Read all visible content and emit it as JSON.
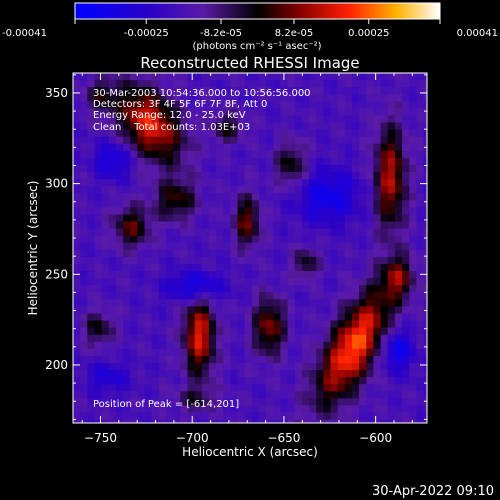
{
  "chart_data": {
    "type": "heatmap",
    "title": "Reconstructed RHESSI Image",
    "xlabel": "Heliocentric X (arcsec)",
    "ylabel": "Heliocentric Y (arcsec)",
    "xlim": [
      -765,
      -572
    ],
    "ylim": [
      168,
      361
    ],
    "xticks": [
      -750,
      -700,
      -650,
      -600
    ],
    "yticks": [
      200,
      250,
      300,
      350
    ],
    "colorbar": {
      "min": -0.00041,
      "max": 0.00041,
      "ticks": [
        -0.00041,
        -0.00025,
        -8.2e-05,
        8.2e-05,
        0.00025,
        0.00041
      ],
      "tick_labels": [
        "-0.00041",
        "-0.00025",
        "-8.2e-05",
        "8.2e-05",
        "0.00025",
        "0.00041"
      ],
      "unit_label": "(photons cm⁻² s⁻¹ asec⁻²)"
    },
    "annotations": [
      "30-Mar-2003 10:54:36.000 to 10:56:56.000",
      "Detectors: 3F 4F 5F 6F 7F 8F, Att 0",
      "Energy Range: 12.0 - 25.0 keV",
      "Clean    Total counts: 1.03E+03"
    ],
    "peak_label": "Position of Peak = [-614,201]",
    "peak": [
      -614,
      201
    ],
    "sources": [
      {
        "x": -614,
        "y": 212,
        "sx": 9,
        "sy": 24,
        "amp": 0.00041,
        "rot": -28
      },
      {
        "x": -698,
        "y": 218,
        "sx": 6,
        "sy": 15,
        "amp": 0.00034
      },
      {
        "x": -725,
        "y": 335,
        "sx": 10,
        "sy": 16,
        "amp": 0.00036,
        "rot": 35
      },
      {
        "x": -594,
        "y": 305,
        "sx": 6,
        "sy": 20,
        "amp": 0.0003
      },
      {
        "x": -660,
        "y": 223,
        "sx": 6,
        "sy": 11,
        "amp": 0.00026
      },
      {
        "x": -735,
        "y": 278,
        "sx": 7,
        "sy": 8,
        "amp": 0.00022
      },
      {
        "x": -711,
        "y": 293,
        "sx": 8,
        "sy": 8,
        "amp": 0.0002
      },
      {
        "x": -672,
        "y": 281,
        "sx": 5,
        "sy": 10,
        "amp": 0.00024
      },
      {
        "x": -648,
        "y": 312,
        "sx": 6,
        "sy": 9,
        "amp": 0.00018
      },
      {
        "x": -590,
        "y": 250,
        "sx": 6,
        "sy": 8,
        "amp": 0.00022
      },
      {
        "x": -753,
        "y": 222,
        "sx": 6,
        "sy": 7,
        "amp": 0.00016
      },
      {
        "x": -683,
        "y": 333,
        "sx": 6,
        "sy": 6,
        "amp": 0.00016
      },
      {
        "x": -640,
        "y": 258,
        "sx": 5,
        "sy": 6,
        "amp": 0.00016
      },
      {
        "x": -752,
        "y": 350,
        "sx": 6,
        "sy": 7,
        "amp": 0.00014
      },
      {
        "x": -700,
        "y": 183,
        "sx": 8,
        "sy": 5,
        "amp": 0.00012
      },
      {
        "x": -700,
        "y": 245,
        "sx": 10,
        "sy": 6,
        "amp": -0.0002
      },
      {
        "x": -628,
        "y": 295,
        "sx": 12,
        "sy": 10,
        "amp": -0.00018
      },
      {
        "x": -590,
        "y": 210,
        "sx": 6,
        "sy": 8,
        "amp": -0.0002
      },
      {
        "x": -745,
        "y": 315,
        "sx": 7,
        "sy": 7,
        "amp": -0.00016
      },
      {
        "x": -748,
        "y": 195,
        "sx": 8,
        "sy": 6,
        "amp": -0.00012
      }
    ]
  },
  "footer": {
    "date": "30-Apr-2022 09:10"
  }
}
